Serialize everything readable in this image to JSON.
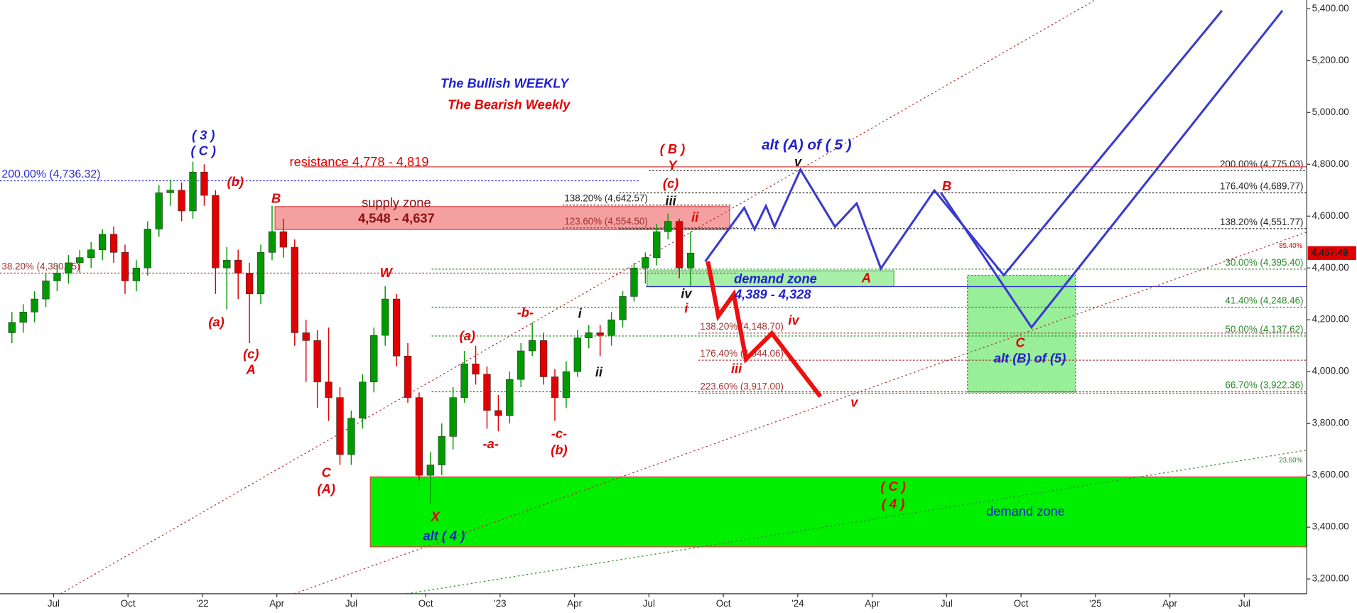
{
  "chart_data": {
    "type": "candlestick",
    "xlim": [
      2021.32,
      2025.71
    ],
    "ylim": [
      3143,
      5433
    ],
    "xticks": [
      {
        "value": 2021.5,
        "label": "Jul"
      },
      {
        "value": 2021.75,
        "label": "Oct"
      },
      {
        "value": 2022.0,
        "label": "'22"
      },
      {
        "value": 2022.25,
        "label": "Apr"
      },
      {
        "value": 2022.5,
        "label": "Jul"
      },
      {
        "value": 2022.75,
        "label": "Oct"
      },
      {
        "value": 2023.0,
        "label": "'23"
      },
      {
        "value": 2023.25,
        "label": "Apr"
      },
      {
        "value": 2023.5,
        "label": "Jul"
      },
      {
        "value": 2023.75,
        "label": "Oct"
      },
      {
        "value": 2024.0,
        "label": "'24"
      },
      {
        "value": 2024.25,
        "label": "Apr"
      },
      {
        "value": 2024.5,
        "label": "Jul"
      },
      {
        "value": 2024.75,
        "label": "Oct"
      },
      {
        "value": 2025.0,
        "label": "'25"
      },
      {
        "value": 2025.25,
        "label": "Apr"
      },
      {
        "value": 2025.5,
        "label": "Jul"
      }
    ],
    "yticks": [
      {
        "value": 3200,
        "label": "3,200.00"
      },
      {
        "value": 3400,
        "label": "3,400.00"
      },
      {
        "value": 3600,
        "label": "3,600.00"
      },
      {
        "value": 3800,
        "label": "3,800.00"
      },
      {
        "value": 4000,
        "label": "4,000.00"
      },
      {
        "value": 4200,
        "label": "4,200.00"
      },
      {
        "value": 4400,
        "label": "4,400.00"
      },
      {
        "value": 4600,
        "label": "4,600.00"
      },
      {
        "value": 4800,
        "label": "4,800.00"
      },
      {
        "value": 5000,
        "label": "5,000.00"
      },
      {
        "value": 5200,
        "label": "5,200.00"
      },
      {
        "value": 5400,
        "label": "5,400.00"
      }
    ],
    "up_color": "#009a00",
    "down_color": "#e00000",
    "candles": [
      [
        2021.36,
        4150,
        4230,
        4110,
        4190
      ],
      [
        2021.398,
        4190,
        4260,
        4150,
        4230
      ],
      [
        2021.436,
        4230,
        4310,
        4190,
        4280
      ],
      [
        2021.474,
        4280,
        4380,
        4250,
        4350
      ],
      [
        2021.512,
        4350,
        4410,
        4310,
        4380
      ],
      [
        2021.55,
        4380,
        4450,
        4340,
        4420
      ],
      [
        2021.588,
        4420,
        4470,
        4380,
        4440
      ],
      [
        2021.626,
        4440,
        4500,
        4400,
        4470
      ],
      [
        2021.664,
        4470,
        4550,
        4430,
        4530
      ],
      [
        2021.702,
        4530,
        4560,
        4420,
        4460
      ],
      [
        2021.74,
        4460,
        4490,
        4300,
        4350
      ],
      [
        2021.778,
        4350,
        4430,
        4310,
        4400
      ],
      [
        2021.816,
        4400,
        4580,
        4370,
        4550
      ],
      [
        2021.854,
        4550,
        4720,
        4520,
        4690
      ],
      [
        2021.892,
        4690,
        4740,
        4640,
        4700
      ],
      [
        2021.93,
        4700,
        4730,
        4580,
        4620
      ],
      [
        2021.968,
        4620,
        4810,
        4590,
        4770
      ],
      [
        2022.006,
        4770,
        4800,
        4640,
        4680
      ],
      [
        2022.044,
        4680,
        4700,
        4300,
        4400
      ],
      [
        2022.082,
        4400,
        4480,
        4240,
        4430
      ],
      [
        2022.12,
        4430,
        4470,
        4280,
        4380
      ],
      [
        2022.158,
        4380,
        4420,
        4110,
        4300
      ],
      [
        2022.196,
        4300,
        4490,
        4260,
        4460
      ],
      [
        2022.234,
        4460,
        4640,
        4430,
        4540
      ],
      [
        2022.272,
        4540,
        4590,
        4440,
        4480
      ],
      [
        2022.31,
        4480,
        4510,
        4100,
        4150
      ],
      [
        2022.348,
        4150,
        4200,
        3960,
        4120
      ],
      [
        2022.386,
        4120,
        4160,
        3860,
        3960
      ],
      [
        2022.424,
        3960,
        4170,
        3810,
        3900
      ],
      [
        2022.462,
        3900,
        3940,
        3640,
        3680
      ],
      [
        2022.5,
        3680,
        3850,
        3640,
        3820
      ],
      [
        2022.538,
        3820,
        3990,
        3780,
        3960
      ],
      [
        2022.576,
        3960,
        4170,
        3920,
        4140
      ],
      [
        2022.614,
        4140,
        4330,
        4100,
        4280
      ],
      [
        2022.652,
        4280,
        4300,
        4020,
        4060
      ],
      [
        2022.69,
        4060,
        4110,
        3880,
        3900
      ],
      [
        2022.728,
        3900,
        3920,
        3580,
        3600
      ],
      [
        2022.766,
        3600,
        3690,
        3490,
        3640
      ],
      [
        2022.804,
        3640,
        3800,
        3600,
        3750
      ],
      [
        2022.842,
        3750,
        3940,
        3700,
        3900
      ],
      [
        2022.88,
        3900,
        4080,
        3880,
        4030
      ],
      [
        2022.918,
        4030,
        4100,
        3950,
        3990
      ],
      [
        2022.956,
        3990,
        4020,
        3780,
        3850
      ],
      [
        2022.994,
        3850,
        3910,
        3770,
        3830
      ],
      [
        2023.032,
        3830,
        4000,
        3800,
        3970
      ],
      [
        2023.07,
        3970,
        4110,
        3940,
        4080
      ],
      [
        2023.108,
        4080,
        4190,
        4060,
        4120
      ],
      [
        2023.146,
        4120,
        4150,
        3950,
        3980
      ],
      [
        2023.184,
        3980,
        4010,
        3810,
        3900
      ],
      [
        2023.222,
        3900,
        4040,
        3860,
        4000
      ],
      [
        2023.26,
        4000,
        4160,
        3980,
        4130
      ],
      [
        2023.298,
        4130,
        4180,
        4090,
        4150
      ],
      [
        2023.336,
        4150,
        4180,
        4060,
        4140
      ],
      [
        2023.374,
        4140,
        4230,
        4100,
        4200
      ],
      [
        2023.412,
        4200,
        4310,
        4170,
        4290
      ],
      [
        2023.45,
        4290,
        4420,
        4270,
        4400
      ],
      [
        2023.488,
        4400,
        4460,
        4340,
        4440
      ],
      [
        2023.526,
        4440,
        4570,
        4410,
        4540
      ],
      [
        2023.564,
        4540,
        4610,
        4510,
        4580
      ],
      [
        2023.602,
        4580,
        4590,
        4360,
        4400
      ],
      [
        2023.64,
        4400,
        4540,
        4330,
        4457.49
      ]
    ],
    "last_price": {
      "value": 4457.49,
      "label": "4,457.49",
      "color": "#e00000"
    },
    "zones": [
      {
        "ylim": [
          4548,
          4637
        ],
        "x": [
          2022.244,
          2023.771
        ],
        "color": "#f4a0a0",
        "edge": "#e05050"
      },
      {
        "ylim": [
          4328,
          4389
        ],
        "x": [
          2023.494,
          2024.323
        ],
        "color": "#a8f0a8",
        "edge": "#40b040"
      },
      {
        "ylim": [
          3324,
          3594
        ],
        "x": [
          2022.564,
          2025.71
        ],
        "color": "#00ee00",
        "edge": "#e04040"
      },
      {
        "ylim": [
          3921,
          4372
        ],
        "x": [
          2024.57,
          2024.933
        ],
        "color": "#99ee99",
        "edge": "#2a8a2a"
      }
    ],
    "levels": [
      {
        "value": 4736.32,
        "label": "200.00% (4,736.32)",
        "x": [
          2021.32,
          2023.47
        ],
        "color": "#2a2ad0",
        "dash": true,
        "side": "start"
      },
      {
        "value": 4380.15,
        "label": "38.20% (4,380.15)",
        "x": [
          2021.32,
          2023.8
        ],
        "color": "#a03030",
        "dash": true,
        "side": "start"
      },
      {
        "value": 4642.57,
        "label": "138.20% (4,642.57)",
        "x": [
          2023.21,
          2023.78
        ],
        "color": "#222222",
        "dash": true,
        "side": "start"
      },
      {
        "value": 4554.5,
        "label": "123.60% (4,554.50)",
        "x": [
          2023.21,
          2023.8
        ],
        "color": "#a03030",
        "dash": true,
        "side": "start"
      },
      {
        "value": 4148.7,
        "label": "138.20% (4,148.70)",
        "x": [
          2023.666,
          2025.71
        ],
        "color": "#a03030",
        "dash": true,
        "side": "start"
      },
      {
        "value": 4044.06,
        "label": "176.40% (4,044.06)",
        "x": [
          2023.666,
          2025.71
        ],
        "color": "#a03030",
        "dash": true,
        "side": "start"
      },
      {
        "value": 3917.0,
        "label": "223.60% (3,917.00)",
        "x": [
          2023.666,
          2025.71
        ],
        "color": "#a03030",
        "dash": true,
        "side": "start"
      },
      {
        "value": 4775.03,
        "label": "200.00% (4,775.03)",
        "x": [
          2023.5,
          2025.71
        ],
        "color": "#222222",
        "dash": true,
        "side": "end"
      },
      {
        "value": 4689.77,
        "label": "176.40% (4,689.77)",
        "x": [
          2023.4,
          2025.71
        ],
        "color": "#222222",
        "dash": true,
        "side": "end"
      },
      {
        "value": 4551.77,
        "label": "138.20% (4,551.77)",
        "x": [
          2023.4,
          2025.71
        ],
        "color": "#222222",
        "dash": true,
        "side": "end"
      },
      {
        "value": 4395.4,
        "label": "30.00% (4,395.40)",
        "x": [
          2022.77,
          2025.71
        ],
        "color": "#2a8a2a",
        "dash": true,
        "side": "end"
      },
      {
        "value": 4248.46,
        "label": "41.40% (4,248.46)",
        "x": [
          2022.77,
          2025.71
        ],
        "color": "#2a8a2a",
        "dash": true,
        "side": "end"
      },
      {
        "value": 4137.62,
        "label": "50.00% (4,137.62)",
        "x": [
          2022.77,
          2025.71
        ],
        "color": "#2a8a2a",
        "dash": true,
        "side": "end"
      },
      {
        "value": 3922.36,
        "label": "66.70% (3,922.36)",
        "x": [
          2022.77,
          2025.71
        ],
        "color": "#2a8a2a",
        "dash": true,
        "side": "end"
      },
      {
        "value": 4790,
        "x": [
          2022.34,
          2025.71
        ],
        "color": "#e04040",
        "dash": false
      },
      {
        "value": 4328,
        "x": [
          2023.49,
          2025.71
        ],
        "color": "#2a2ad0",
        "dash": false
      }
    ],
    "paths": [
      {
        "color": "#3a3ad0",
        "width": 2.5,
        "points": [
          [
            2023.689,
            4425
          ],
          [
            2023.82,
            4632
          ],
          [
            2023.855,
            4549
          ],
          [
            2023.893,
            4639
          ],
          [
            2023.922,
            4559
          ],
          [
            2024.009,
            4779
          ],
          [
            2024.125,
            4559
          ],
          [
            2024.198,
            4649
          ],
          [
            2024.279,
            4398
          ],
          [
            2024.459,
            4699
          ],
          [
            2024.692,
            4372
          ],
          [
            2025.425,
            5393
          ]
        ]
      },
      {
        "color": "#3a3ad0",
        "width": 2.5,
        "points": [
          [
            2024.48,
            4692
          ],
          [
            2024.785,
            4171
          ],
          [
            2025.628,
            5393
          ]
        ]
      },
      {
        "color": "#ee1010",
        "width": 5,
        "points": [
          [
            2023.698,
            4425
          ],
          [
            2023.733,
            4215
          ],
          [
            2023.785,
            4298
          ],
          [
            2023.826,
            4048
          ],
          [
            2023.913,
            4148
          ],
          [
            2024.076,
            3904
          ]
        ]
      }
    ],
    "annotations": [
      "The Bullish WEEKLY",
      "The Bearish Weekly",
      "( 3 )",
      "( C )",
      "(b)",
      "B",
      "(a)",
      "(c)",
      "A",
      "W",
      "C",
      "(A)",
      "X",
      "alt ( 4 )",
      "(a)",
      "-b-",
      "i",
      "ii",
      "-a-",
      "-c-",
      "(b)",
      "( B )",
      "Y",
      "(c)",
      "iii",
      "ii",
      "iv",
      "i",
      "alt (A) of ( 5 )",
      "v",
      "iii",
      "iv",
      "v",
      "A",
      "B",
      "C",
      "alt (B) of (5)",
      "( C )",
      "( 4 )",
      "demand zone",
      "supply zone",
      "4,548 - 4,637",
      "demand zone",
      "4,389 - 4,328",
      "resistance 4,778 - 4,819",
      "85.40%",
      "23.60%"
    ]
  }
}
